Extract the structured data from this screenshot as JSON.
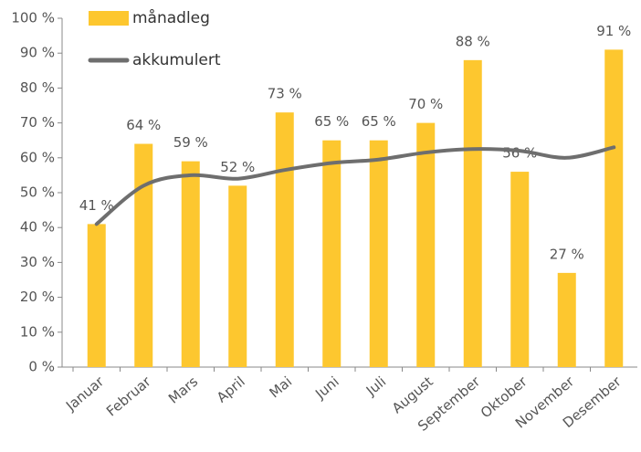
{
  "chart_data": {
    "type": "bar_line",
    "categories": [
      "Januar",
      "Februar",
      "Mars",
      "April",
      "Mai",
      "Juni",
      "Juli",
      "August",
      "September",
      "Oktober",
      "November",
      "Desember"
    ],
    "series": [
      {
        "name": "månadleg",
        "type": "bar",
        "color": "#fdc72f",
        "values": [
          41,
          64,
          59,
          52,
          73,
          65,
          65,
          70,
          88,
          56,
          27,
          91
        ],
        "value_labels": [
          "41 %",
          "64 %",
          "59 %",
          "52 %",
          "73 %",
          "65 %",
          "65 %",
          "70 %",
          "88 %",
          "56 %",
          "27 %",
          "91 %"
        ]
      },
      {
        "name": "akkumulert",
        "type": "line",
        "color": "#6e6e6e",
        "values": [
          41,
          52,
          55,
          54,
          56.5,
          58.5,
          59.5,
          61.5,
          62.5,
          62,
          60,
          63
        ]
      }
    ],
    "ylim": [
      0,
      100
    ],
    "yticks": [
      {
        "value": 0,
        "label": "0 %"
      },
      {
        "value": 10,
        "label": "10 %"
      },
      {
        "value": 20,
        "label": "20 %"
      },
      {
        "value": 30,
        "label": "30 %"
      },
      {
        "value": 40,
        "label": "40 %"
      },
      {
        "value": 50,
        "label": "50 %"
      },
      {
        "value": 60,
        "label": "60 %"
      },
      {
        "value": 70,
        "label": "70 %"
      },
      {
        "value": 80,
        "label": "80 %"
      },
      {
        "value": 90,
        "label": "90 %"
      },
      {
        "value": 100,
        "label": "100 %"
      }
    ],
    "grid": false,
    "legend": "top-left"
  }
}
